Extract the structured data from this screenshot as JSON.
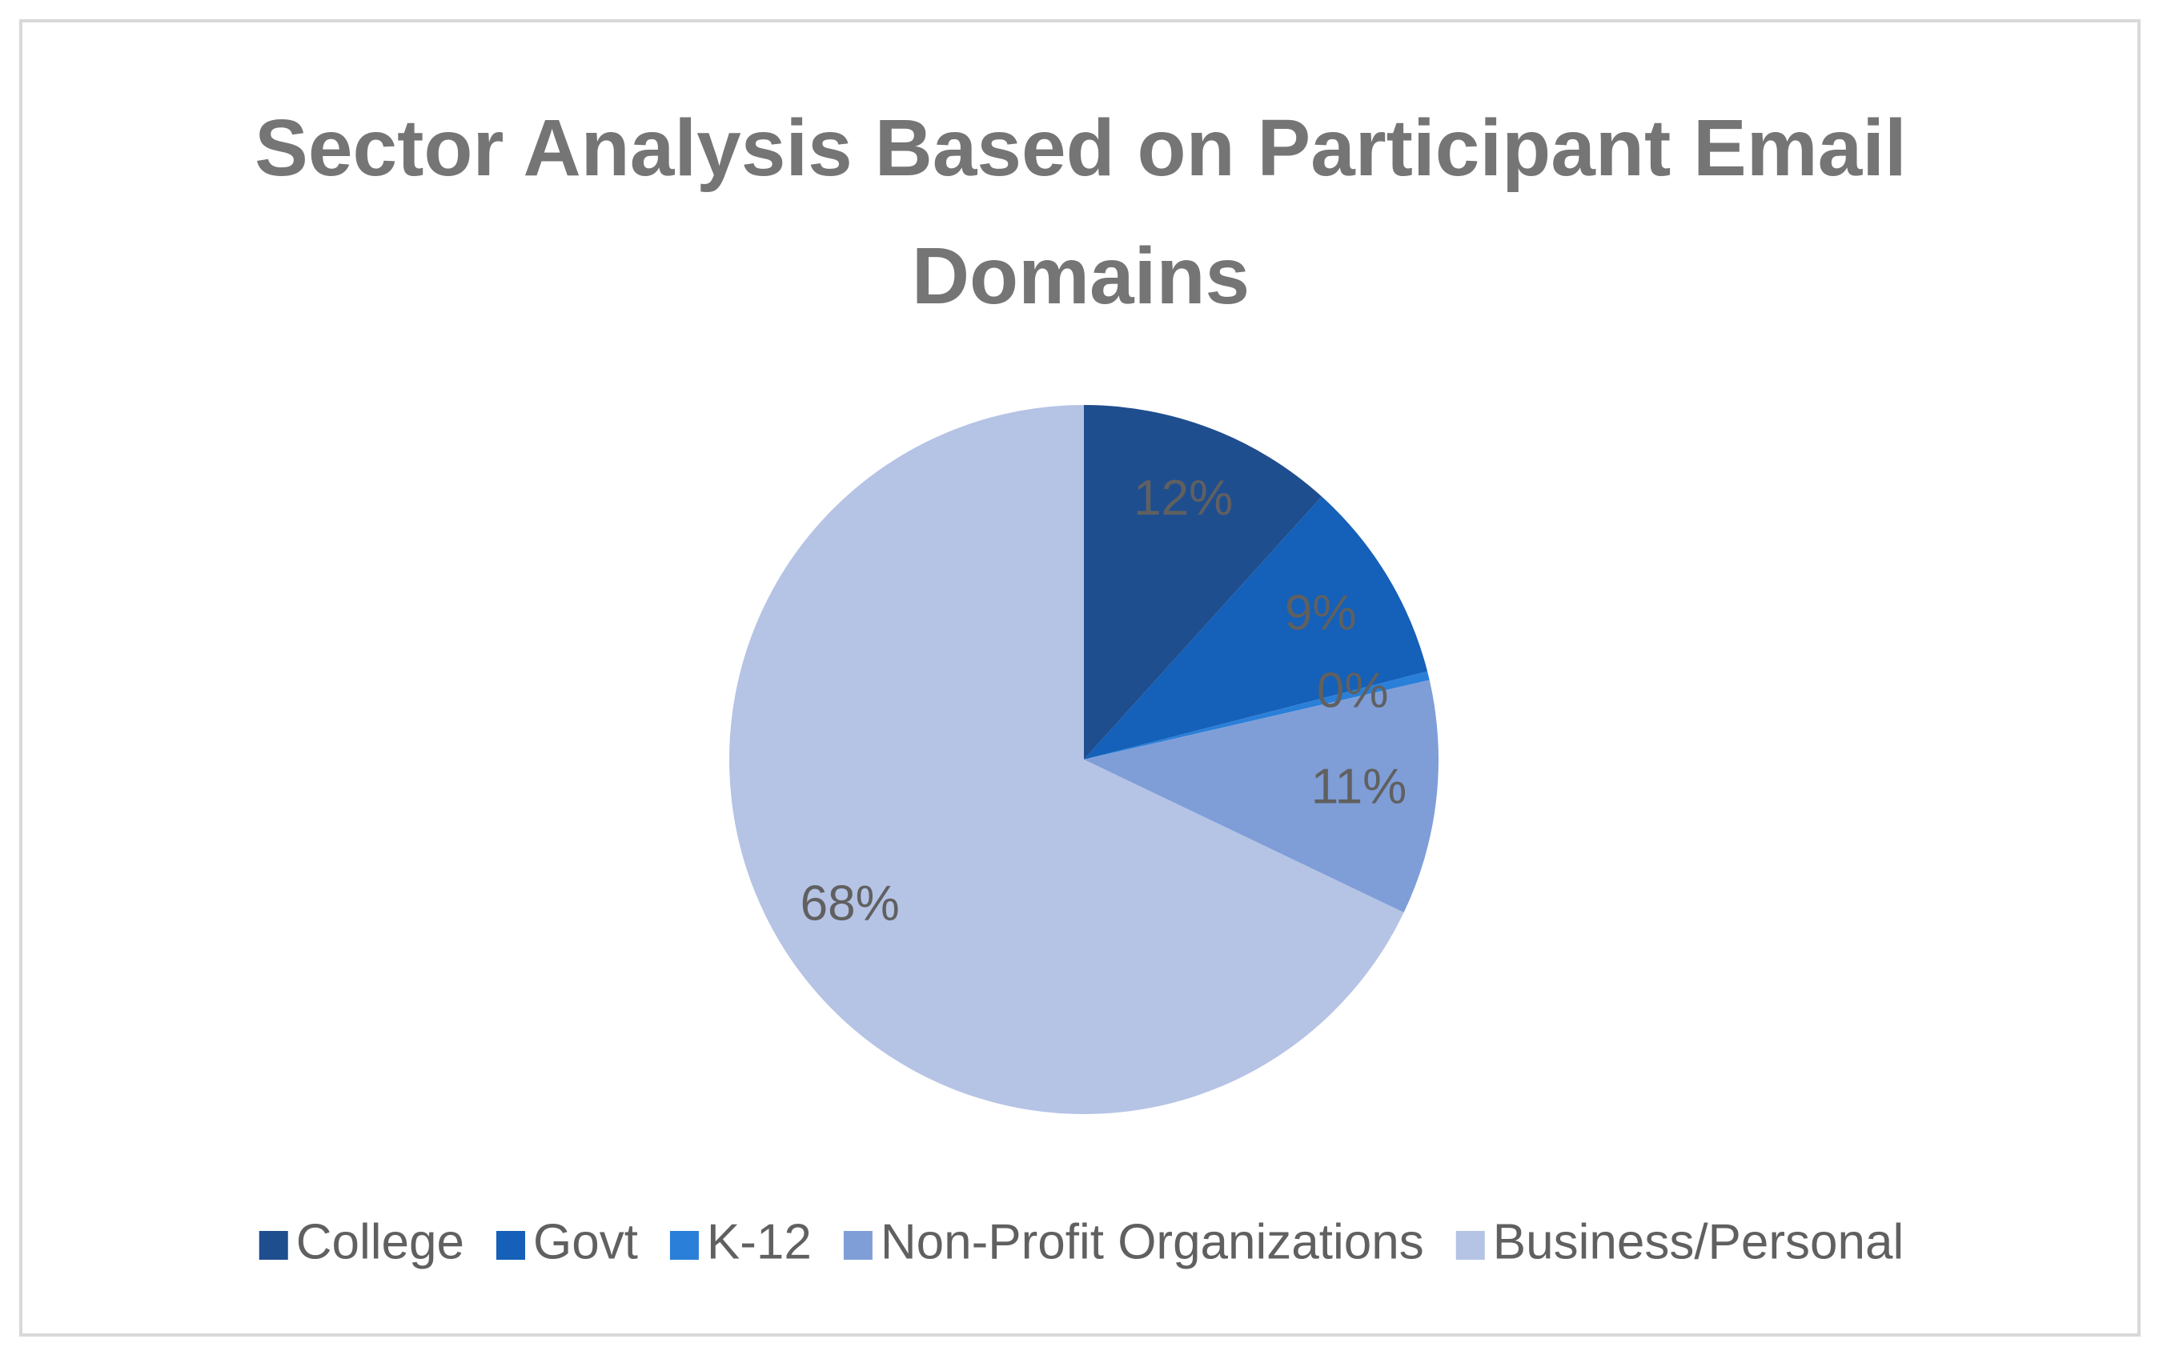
{
  "chart_data": {
    "type": "pie",
    "title": "Sector Analysis Based on Participant Email Domains",
    "categories": [
      "College",
      "Govt",
      "K-12",
      "Non-Profit Organizations",
      "Business/Personal"
    ],
    "values": [
      11.7,
      9.3,
      0.4,
      10.7,
      67.9
    ],
    "value_labels": [
      "12%",
      "9%",
      "0%",
      "11%",
      "68%"
    ],
    "colors": [
      "#1f4e8f",
      "#1560b8",
      "#2a7fd8",
      "#7f9ed8",
      "#b5c3e5"
    ],
    "legend": "bottom"
  }
}
